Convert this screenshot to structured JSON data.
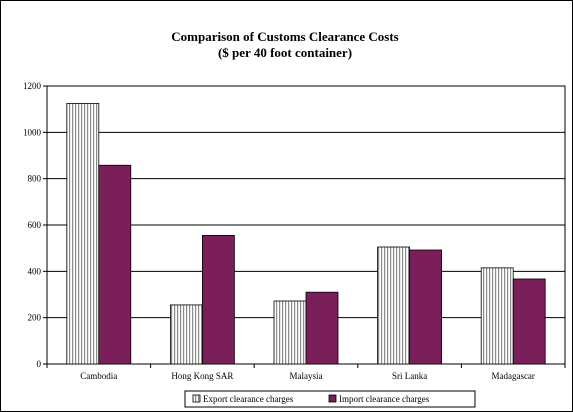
{
  "chart_data": {
    "type": "bar",
    "title": "Comparison of Customs Clearance Costs",
    "subtitle": "($ per 40 foot container)",
    "categories": [
      "Cambodia",
      "Hong Kong SAR",
      "Malaysia",
      "Sri Lanka",
      "Madagascar"
    ],
    "series": [
      {
        "name": "Export clearance charges",
        "values": [
          1125,
          255,
          272,
          505,
          415
        ],
        "pattern": "vertical-stripes",
        "color": "#ffffff"
      },
      {
        "name": "Import clearance charges",
        "values": [
          858,
          555,
          310,
          492,
          367
        ],
        "color": "#7b1f5a"
      }
    ],
    "ylim": [
      0,
      1200
    ],
    "yticks": [
      0,
      200,
      400,
      600,
      800,
      1000,
      1200
    ],
    "grid": true,
    "legend_position": "bottom"
  }
}
